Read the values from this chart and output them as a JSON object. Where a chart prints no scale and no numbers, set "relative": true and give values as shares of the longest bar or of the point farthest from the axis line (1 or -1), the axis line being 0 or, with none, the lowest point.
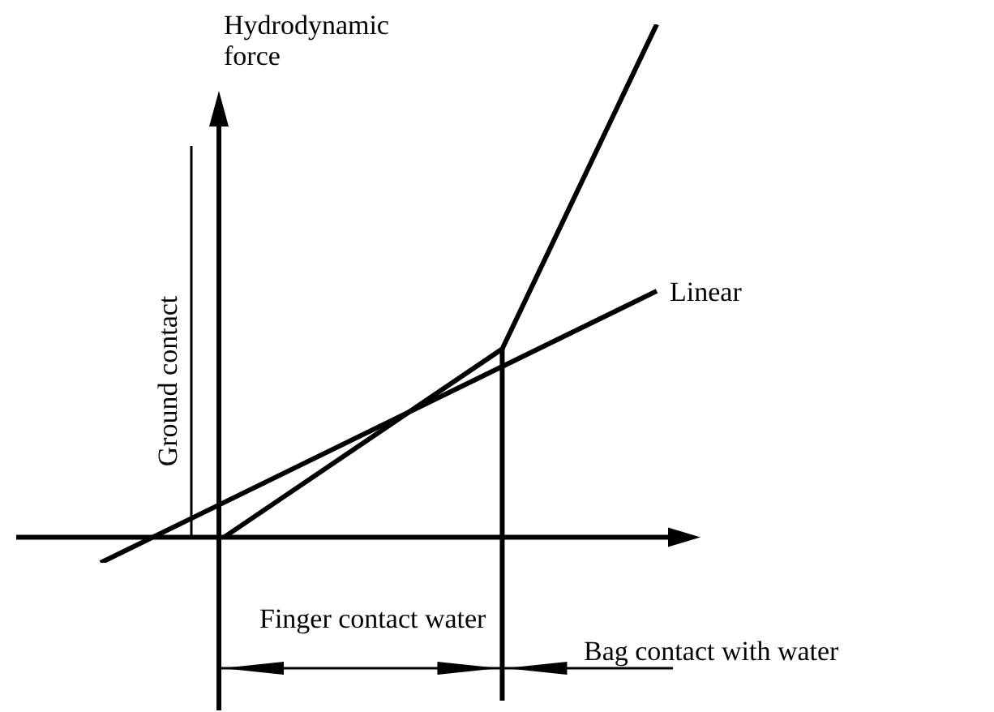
{
  "chart_data": {
    "type": "line",
    "ylabel": "Hydrodynamic force",
    "relative": true,
    "categories": [
      null,
      null,
      null,
      null,
      null,
      null,
      null,
      null,
      null,
      null,
      null,
      null,
      null,
      null,
      null,
      null,
      null,
      null,
      null
    ],
    "series": [
      {
        "name": "Linear",
        "color": "#000000",
        "values": [
          -0.05,
          null,
          null,
          null,
          null,
          null,
          null,
          null,
          null,
          null,
          null,
          null,
          null,
          null,
          null,
          null,
          null,
          null,
          0.48
        ]
      },
      {
        "color": "#000000",
        "values": [
          null,
          null,
          null,
          null,
          0,
          null,
          null,
          null,
          null,
          null,
          null,
          null,
          null,
          0.367,
          null,
          null,
          null,
          null,
          1
        ]
      }
    ],
    "annotations": [
      "Ground contact",
      "Finger contact water",
      "Bag contact with water"
    ],
    "marker": "none",
    "line_style": "solid"
  }
}
